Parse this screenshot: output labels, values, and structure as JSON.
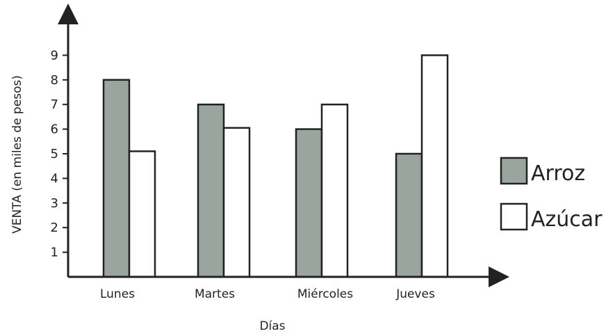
{
  "chart_data": {
    "type": "bar",
    "categories": [
      "Lunes",
      "Martes",
      "Miércoles",
      "Jueves"
    ],
    "series": [
      {
        "name": "Arroz",
        "values": [
          8,
          7,
          6,
          5
        ],
        "color": "#9aa5a0"
      },
      {
        "name": "Azúcar",
        "values": [
          5.1,
          6.05,
          7,
          9
        ],
        "color": "#ffffff"
      }
    ],
    "title": "",
    "xlabel": "Días",
    "ylabel": "VENTA (en miles de pesos)",
    "ylim": [
      0,
      10
    ],
    "yticks": [
      1,
      2,
      3,
      4,
      5,
      6,
      7,
      8,
      9
    ],
    "grid": false,
    "legend_position": "right"
  }
}
